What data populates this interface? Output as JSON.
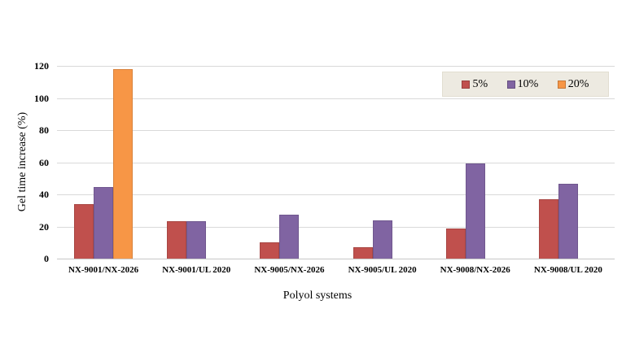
{
  "chart_data": {
    "type": "bar",
    "title": "",
    "xlabel": "Polyol systems",
    "ylabel": "Gel time increase (%)",
    "categories": [
      "NX-9001/NX-2026",
      "NX-9001/UL 2020",
      "NX-9005/NX-2026",
      "NX-9005/UL 2020",
      "NX-9008/NX-2026",
      "NX-9008/UL 2020"
    ],
    "series": [
      {
        "name": "5%",
        "color": "#C0504D",
        "values": [
          34,
          23.5,
          10,
          7,
          18.5,
          37
        ]
      },
      {
        "name": "10%",
        "color": "#8064A2",
        "values": [
          44.5,
          23.5,
          27.5,
          24,
          59,
          46.5
        ]
      },
      {
        "name": "20%",
        "color": "#F79646",
        "values": [
          118,
          null,
          null,
          null,
          null,
          null
        ]
      }
    ],
    "ylim": [
      0,
      120
    ],
    "yticks": [
      0,
      20,
      40,
      60,
      80,
      100,
      120
    ],
    "grid": true,
    "legend_position": "top-right",
    "legend_bg": "#EDEAE1",
    "gridline_color": "#D9D9D9",
    "axis_line_color": "#C6C6C6"
  }
}
